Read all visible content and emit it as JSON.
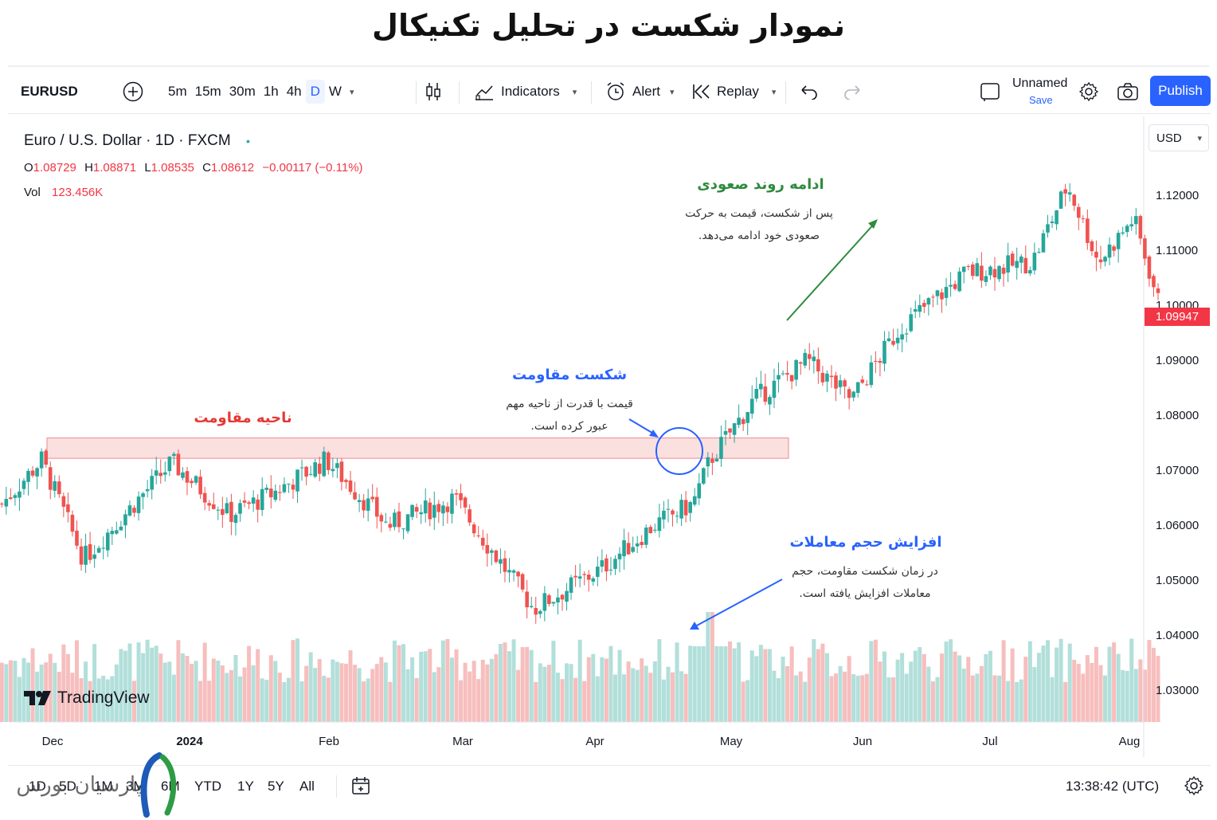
{
  "title": "نمودار شکست در تحلیل تکنیکال",
  "toolbar": {
    "symbol": "EURUSD",
    "timeframes": [
      "5m",
      "15m",
      "30m",
      "1h",
      "4h",
      "D",
      "W"
    ],
    "active_timeframe": "D",
    "indicators": "Indicators",
    "alert": "Alert",
    "replay": "Replay",
    "layout_name": "Unnamed",
    "save": "Save",
    "publish": "Publish"
  },
  "legend": {
    "title": "Euro / U.S. Dollar · 1D · FXCM",
    "o_label": "O",
    "o": "1.08729",
    "h_label": "H",
    "h": "1.08871",
    "l_label": "L",
    "l": "1.08535",
    "c_label": "C",
    "c": "1.08612",
    "change": "−0.00117 (−0.11%)",
    "vol_label": "Vol",
    "vol": "123.456K"
  },
  "currency": "USD",
  "last_price": "1.09947",
  "brand": "TradingView",
  "annotations": {
    "resistance_zone": {
      "title": "ناحیه مقاومت"
    },
    "breakout": {
      "title": "شکست مقاومت",
      "line1": "قیمت با قدرت از ناحیه مهم",
      "line2": "عبور کرده است."
    },
    "uptrend": {
      "title": "ادامه روند صعودی",
      "line1": "پس از شکست، قیمت به حرکت",
      "line2": "صعودی خود ادامه می‌دهد."
    },
    "volume": {
      "title": "افزایش حجم معاملات",
      "line1": "در زمان شکست مقاومت، حجم",
      "line2": "معاملات افزایش یافته است."
    }
  },
  "bottom": {
    "ranges": [
      "1D",
      "5D",
      "1M",
      "3M",
      "6M",
      "YTD",
      "1Y",
      "5Y",
      "All"
    ],
    "time": "13:38:42 (UTC)",
    "watermark": "پارسیان بورس"
  },
  "colors": {
    "up": "#26a69a",
    "down": "#ef5350",
    "accent": "#2962ff",
    "resistance": "#f7c5c5",
    "trend_arrow": "#2e8b3d",
    "blue_note": "#2962ff"
  },
  "chart_data": {
    "type": "candlestick",
    "symbol": "EURUSD",
    "interval": "1D",
    "y_ticks": [
      "1.12000",
      "1.11000",
      "1.10000",
      "1.09000",
      "1.08000",
      "1.07000",
      "1.06000",
      "1.05000",
      "1.04000",
      "1.03000"
    ],
    "x_ticks": [
      "Dec",
      "2024",
      "Feb",
      "Mar",
      "Apr",
      "May",
      "Jun",
      "Jul",
      "Aug"
    ],
    "ylim": [
      1.027,
      1.126
    ],
    "resistance_zone": [
      1.0723,
      1.076
    ],
    "path_key_points": [
      {
        "date": "Nov 20",
        "close": 1.064
      },
      {
        "date": "Nov 29",
        "close": 1.072
      },
      {
        "date": "Dec 8",
        "close": 1.054
      },
      {
        "date": "Dec 28",
        "close": 1.0715
      },
      {
        "date": "Jan 10",
        "close": 1.062
      },
      {
        "date": "Jan 20",
        "close": 1.066
      },
      {
        "date": "Feb 1",
        "close": 1.072
      },
      {
        "date": "Feb 15",
        "close": 1.06
      },
      {
        "date": "Mar 1",
        "close": 1.065
      },
      {
        "date": "Mar 19",
        "close": 1.045
      },
      {
        "date": "Apr 3",
        "close": 1.052
      },
      {
        "date": "Apr 15",
        "close": 1.06
      },
      {
        "date": "Apr 24",
        "close": 1.064
      },
      {
        "date": "Apr 28",
        "close": 1.072
      },
      {
        "date": "May 8",
        "close": 1.083
      },
      {
        "date": "May 20",
        "close": 1.09
      },
      {
        "date": "May 30",
        "close": 1.083
      },
      {
        "date": "Jun 10",
        "close": 1.096
      },
      {
        "date": "Jun 25",
        "close": 1.106
      },
      {
        "date": "Jul 10",
        "close": 1.108
      },
      {
        "date": "Jul 18",
        "close": 1.122
      },
      {
        "date": "Jul 25",
        "close": 1.108
      },
      {
        "date": "Aug 2",
        "close": 1.116
      },
      {
        "date": "Aug 8",
        "close": 1.0995
      }
    ],
    "volume_peak_date": "Apr 28"
  }
}
